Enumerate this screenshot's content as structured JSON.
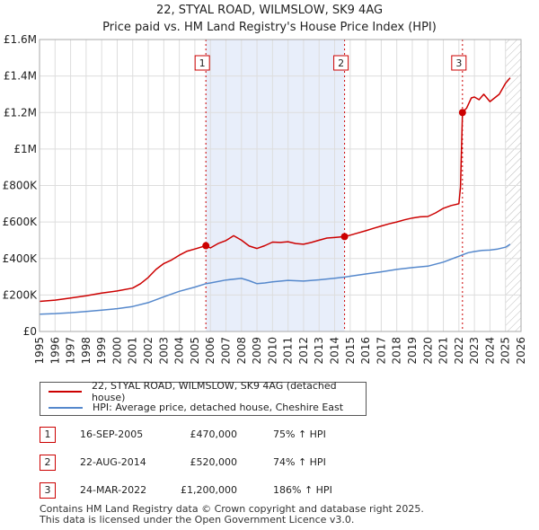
{
  "title": "22, STYAL ROAD, WILMSLOW, SK9 4AG",
  "subtitle": "Price paid vs. HM Land Registry's House Price Index (HPI)",
  "colors": {
    "property": "#cc0000",
    "hpi": "#5588cc",
    "shade": "#e8eefa",
    "hatch": "#bbbbbb"
  },
  "legend": {
    "property_label": "22, STYAL ROAD, WILMSLOW, SK9 4AG (detached house)",
    "hpi_label": "HPI: Average price, detached house, Cheshire East"
  },
  "sales": [
    {
      "num": "1",
      "date": "16-SEP-2005",
      "price": "£470,000",
      "hpi": "75% ↑ HPI",
      "x": 2005.71,
      "value": 470000
    },
    {
      "num": "2",
      "date": "22-AUG-2014",
      "price": "£520,000",
      "hpi": "74% ↑ HPI",
      "x": 2014.64,
      "value": 520000
    },
    {
      "num": "3",
      "date": "24-MAR-2022",
      "price": "£1,200,000",
      "hpi": "186% ↑ HPI",
      "x": 2022.23,
      "value": 1200000
    }
  ],
  "footer": {
    "line1": "Contains HM Land Registry data © Crown copyright and database right 2025.",
    "line2": "This data is licensed under the Open Government Licence v3.0."
  },
  "chart_data": {
    "type": "line",
    "title": "22, STYAL ROAD, WILMSLOW, SK9 4AG",
    "subtitle": "Price paid vs. HM Land Registry's House Price Index (HPI)",
    "xlim": [
      1995,
      2026
    ],
    "ylim": [
      0,
      1600000
    ],
    "y_ticks": [
      0,
      200000,
      400000,
      600000,
      800000,
      1000000,
      1200000,
      1400000,
      1600000
    ],
    "y_tick_labels": [
      "£0",
      "£200K",
      "£400K",
      "£600K",
      "£800K",
      "£1M",
      "£1.2M",
      "£1.4M",
      "£1.6M"
    ],
    "x_ticks": [
      1995,
      1996,
      1997,
      1998,
      1999,
      2000,
      2001,
      2002,
      2003,
      2004,
      2005,
      2006,
      2007,
      2008,
      2009,
      2010,
      2011,
      2012,
      2013,
      2014,
      2015,
      2016,
      2017,
      2018,
      2019,
      2020,
      2021,
      2022,
      2023,
      2024,
      2025,
      2026
    ],
    "shaded_range": [
      2005.71,
      2014.64
    ],
    "hatched_from": 2025.0,
    "grid": true,
    "series": [
      {
        "name": "22, STYAL ROAD, WILMSLOW, SK9 4AG (detached house)",
        "x": [
          1995,
          1996,
          1997,
          1998,
          1999,
          2000,
          2001,
          2001.5,
          2002,
          2002.5,
          2003,
          2003.5,
          2004,
          2004.5,
          2005,
          2005.71,
          2006,
          2006.5,
          2007,
          2007.5,
          2008,
          2008.5,
          2009,
          2009.5,
          2010,
          2010.5,
          2011,
          2011.5,
          2012,
          2012.5,
          2013,
          2013.5,
          2014,
          2014.64,
          2015,
          2015.5,
          2016,
          2016.5,
          2017,
          2017.5,
          2018,
          2018.5,
          2019,
          2019.5,
          2020,
          2020.5,
          2021,
          2021.5,
          2022,
          2022.1,
          2022.23,
          2022.5,
          2022.8,
          2023,
          2023.3,
          2023.6,
          2024,
          2024.3,
          2024.6,
          2024.8,
          2025,
          2025.3
        ],
        "values": [
          165000,
          172000,
          183000,
          196000,
          210000,
          222000,
          238000,
          262000,
          296000,
          340000,
          372000,
          392000,
          418000,
          440000,
          452000,
          470000,
          458000,
          482000,
          498000,
          525000,
          500000,
          468000,
          455000,
          470000,
          490000,
          488000,
          492000,
          482000,
          478000,
          488000,
          500000,
          512000,
          515000,
          520000,
          528000,
          540000,
          552000,
          565000,
          578000,
          590000,
          600000,
          612000,
          622000,
          628000,
          630000,
          650000,
          675000,
          690000,
          700000,
          790000,
          1200000,
          1225000,
          1280000,
          1285000,
          1270000,
          1300000,
          1260000,
          1280000,
          1300000,
          1330000,
          1360000,
          1390000
        ]
      },
      {
        "name": "HPI: Average price, detached house, Cheshire East",
        "x": [
          1995,
          1996,
          1997,
          1998,
          1999,
          2000,
          2001,
          2002,
          2003,
          2004,
          2005,
          2005.71,
          2006,
          2007,
          2008,
          2008.5,
          2009,
          2009.5,
          2010,
          2011,
          2012,
          2013,
          2014,
          2014.64,
          2015,
          2016,
          2017,
          2018,
          2019,
          2020,
          2021,
          2022,
          2022.23,
          2022.6,
          2023,
          2023.5,
          2024,
          2024.5,
          2025,
          2025.3
        ],
        "values": [
          95000,
          98000,
          103000,
          110000,
          117000,
          125000,
          137000,
          158000,
          190000,
          220000,
          243000,
          262000,
          266000,
          282000,
          291000,
          278000,
          262000,
          266000,
          272000,
          280000,
          276000,
          283000,
          292000,
          298000,
          303000,
          315000,
          327000,
          340000,
          350000,
          358000,
          380000,
          412000,
          420000,
          432000,
          438000,
          444000,
          446000,
          452000,
          462000,
          478000
        ]
      }
    ]
  }
}
